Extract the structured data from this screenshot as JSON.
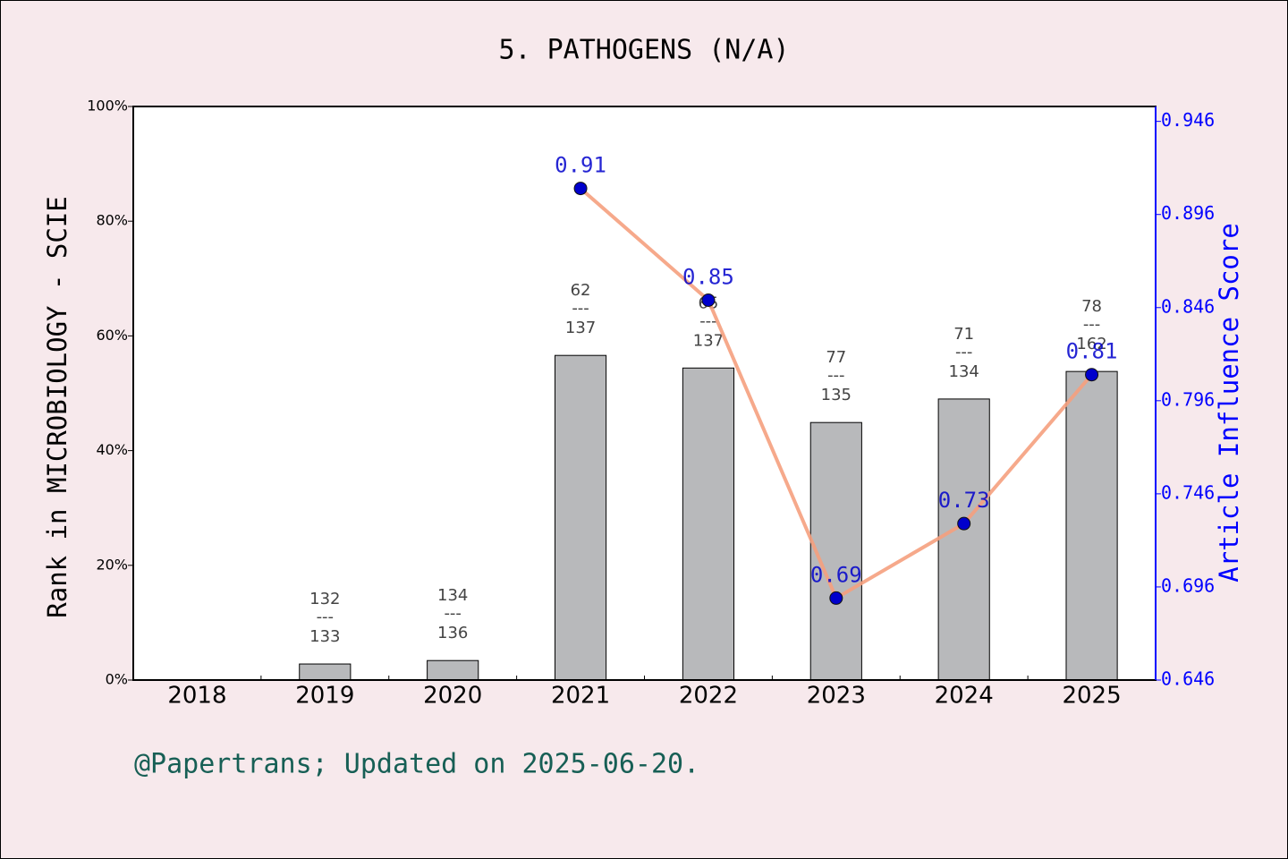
{
  "chart_data": {
    "type": "bar",
    "title": "5. PATHOGENS (N/A)",
    "y_label": "Rank in MICROBIOLOGY - SCIE",
    "y2_label": "Article Influence Score",
    "footer": "@Papertrans; Updated on 2025-06-20.",
    "categories": [
      "2018",
      "2019",
      "2020",
      "2021",
      "2022",
      "2023",
      "2024",
      "2025"
    ],
    "series": [
      {
        "type": "bar",
        "color": "#b8b9bb",
        "values": [
          null,
          2.8,
          3.4,
          56.6,
          54.4,
          44.9,
          49.0,
          53.8
        ]
      },
      {
        "type": "line",
        "axis": "y2",
        "color": "#f5a07e",
        "marker_color": "#0000cc",
        "values": [
          null,
          null,
          null,
          0.91,
          0.85,
          0.69,
          0.73,
          0.81
        ]
      }
    ],
    "rank_labels": [
      null,
      {
        "rank": "132",
        "total": "133"
      },
      {
        "rank": "134",
        "total": "136"
      },
      {
        "rank": "62",
        "total": "137"
      },
      {
        "rank": "65",
        "total": "137"
      },
      {
        "rank": "77",
        "total": "135"
      },
      {
        "rank": "71",
        "total": "134"
      },
      {
        "rank": "78",
        "total": "162"
      }
    ],
    "fraction_separator": "---",
    "ylim": [
      0,
      100
    ],
    "yticks": [
      {
        "value": 0,
        "label": "0%"
      },
      {
        "value": 20,
        "label": "20%"
      },
      {
        "value": 40,
        "label": "40%"
      },
      {
        "value": 60,
        "label": "60%"
      },
      {
        "value": 80,
        "label": "80%"
      },
      {
        "value": 100,
        "label": "100%"
      }
    ],
    "y2lim": [
      0.646,
      0.954
    ],
    "y2ticks": [
      0.646,
      0.696,
      0.746,
      0.796,
      0.846,
      0.896,
      0.946
    ]
  }
}
